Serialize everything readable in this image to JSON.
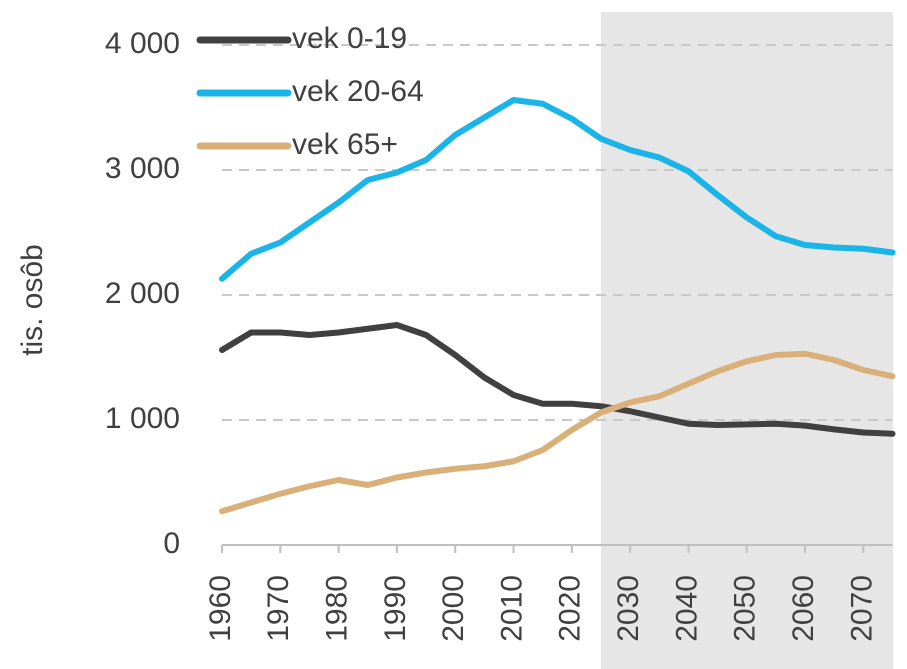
{
  "chart_data": {
    "type": "line",
    "y_label": "tis. osôb",
    "x": [
      1960,
      1965,
      1970,
      1975,
      1980,
      1985,
      1990,
      1995,
      2000,
      2005,
      2010,
      2015,
      2020,
      2025,
      2030,
      2035,
      2040,
      2045,
      2050,
      2055,
      2060,
      2065,
      2070,
      2075
    ],
    "series": [
      {
        "name": "vek 0-19",
        "color": "#404040",
        "values": [
          1560,
          1700,
          1700,
          1680,
          1700,
          1730,
          1760,
          1680,
          1520,
          1340,
          1200,
          1130,
          1130,
          1110,
          1070,
          1020,
          970,
          960,
          965,
          970,
          955,
          925,
          900,
          890
        ]
      },
      {
        "name": "vek 20-64",
        "color": "#1ab4e8",
        "values": [
          2130,
          2330,
          2420,
          2580,
          2740,
          2920,
          2980,
          3080,
          3280,
          3420,
          3560,
          3530,
          3410,
          3250,
          3160,
          3100,
          2990,
          2800,
          2620,
          2470,
          2400,
          2380,
          2370,
          2340
        ]
      },
      {
        "name": "vek 65+",
        "color": "#d9b07a",
        "values": [
          270,
          340,
          410,
          470,
          520,
          480,
          540,
          580,
          610,
          630,
          670,
          760,
          920,
          1060,
          1140,
          1190,
          1290,
          1390,
          1470,
          1520,
          1530,
          1480,
          1400,
          1350
        ]
      }
    ],
    "xlim": [
      1960,
      2075
    ],
    "xticks": [
      1960,
      1970,
      1980,
      1990,
      2000,
      2010,
      2020,
      2030,
      2040,
      2050,
      2060,
      2070
    ],
    "ylim": [
      0,
      4000
    ],
    "yticks": [
      0,
      {
        "value": 1000,
        "label": "1 000"
      },
      {
        "value": 2000,
        "label": "2 000"
      },
      {
        "value": 3000,
        "label": "3 000"
      },
      {
        "value": 4000,
        "label": "4 000"
      }
    ],
    "shaded_from": 2025,
    "shade_color": "#e6e6e6",
    "grid": true,
    "legend": "top-left"
  }
}
